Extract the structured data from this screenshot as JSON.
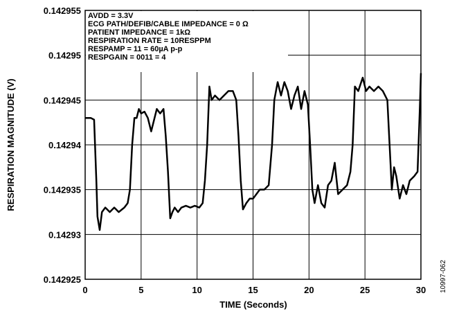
{
  "chart_data": {
    "type": "line",
    "x_label": "TIME (Seconds)",
    "y_label": "RESPIRATION MAGNITUDE (V)",
    "annotations": [
      "AVDD = 3.3V",
      "ECG PATH/DEFIB/CABLE IMPEDANCE = 0 Ω",
      "PATIENT IMPEDANCE = 1kΩ",
      "RESPIRATION RATE = 10RESPPM",
      "RESPAMP = 11 = 60µA p-p",
      "RESPGAIN = 0011 = 4"
    ],
    "figure_id": "10997-062",
    "color": "#000000",
    "grid": true,
    "xlim": [
      0,
      30
    ],
    "xticks": [
      0,
      5,
      10,
      15,
      20,
      25,
      30
    ],
    "ylim": [
      0.142925,
      0.142955
    ],
    "yticks": [
      0.142925,
      0.14293,
      0.142935,
      0.14294,
      0.142945,
      0.14295,
      0.142955
    ],
    "x": [
      0,
      0.5,
      0.8,
      1.0,
      1.1,
      1.3,
      1.5,
      1.8,
      2.2,
      2.6,
      3.0,
      3.5,
      3.8,
      4.0,
      4.2,
      4.4,
      4.6,
      4.8,
      5.0,
      5.3,
      5.6,
      5.9,
      6.1,
      6.4,
      6.7,
      7.0,
      7.2,
      7.4,
      7.6,
      7.8,
      8.0,
      8.3,
      8.6,
      9.0,
      9.4,
      9.8,
      10.2,
      10.5,
      10.7,
      10.9,
      11.1,
      11.3,
      11.6,
      12.0,
      12.4,
      12.8,
      13.2,
      13.5,
      13.7,
      13.9,
      14.1,
      14.4,
      14.7,
      15.0,
      15.3,
      15.6,
      16.0,
      16.4,
      16.7,
      16.9,
      17.2,
      17.5,
      17.8,
      18.1,
      18.4,
      18.7,
      19.0,
      19.3,
      19.6,
      19.9,
      20.1,
      20.3,
      20.5,
      20.8,
      21.1,
      21.4,
      21.7,
      22.0,
      22.3,
      22.6,
      23.0,
      23.4,
      23.7,
      23.9,
      24.1,
      24.4,
      24.8,
      25.1,
      25.4,
      25.8,
      26.2,
      26.6,
      27.0,
      27.2,
      27.4,
      27.6,
      27.8,
      28.1,
      28.4,
      28.7,
      29.0,
      29.4,
      29.7,
      29.9,
      30.0
    ],
    "values": [
      0.142943,
      0.142943,
      0.1429428,
      0.142936,
      0.142932,
      0.1429305,
      0.1429325,
      0.142933,
      0.1429325,
      0.142933,
      0.1429325,
      0.142933,
      0.1429335,
      0.142935,
      0.14294,
      0.142943,
      0.142943,
      0.142944,
      0.1429435,
      0.1429437,
      0.142943,
      0.1429415,
      0.1429425,
      0.142944,
      0.1429435,
      0.142944,
      0.142941,
      0.142937,
      0.1429318,
      0.1429325,
      0.142933,
      0.1429325,
      0.142933,
      0.1429332,
      0.142933,
      0.1429332,
      0.142933,
      0.1429335,
      0.142936,
      0.14294,
      0.1429465,
      0.142945,
      0.1429455,
      0.142945,
      0.1429455,
      0.142946,
      0.142946,
      0.142945,
      0.142941,
      0.142936,
      0.1429328,
      0.1429335,
      0.142934,
      0.142934,
      0.1429345,
      0.142935,
      0.142935,
      0.1429355,
      0.14294,
      0.142945,
      0.142947,
      0.1429455,
      0.142947,
      0.142946,
      0.142944,
      0.1429455,
      0.1429465,
      0.142944,
      0.142946,
      0.1429445,
      0.14294,
      0.142935,
      0.1429335,
      0.1429355,
      0.1429335,
      0.142933,
      0.1429355,
      0.142936,
      0.142938,
      0.1429345,
      0.142935,
      0.1429355,
      0.142937,
      0.14294,
      0.1429465,
      0.142946,
      0.1429475,
      0.142946,
      0.1429465,
      0.142946,
      0.1429465,
      0.142946,
      0.142945,
      0.14294,
      0.142935,
      0.1429375,
      0.1429365,
      0.142934,
      0.1429355,
      0.1429345,
      0.142936,
      0.1429365,
      0.142937,
      0.142944,
      0.142948
    ]
  }
}
